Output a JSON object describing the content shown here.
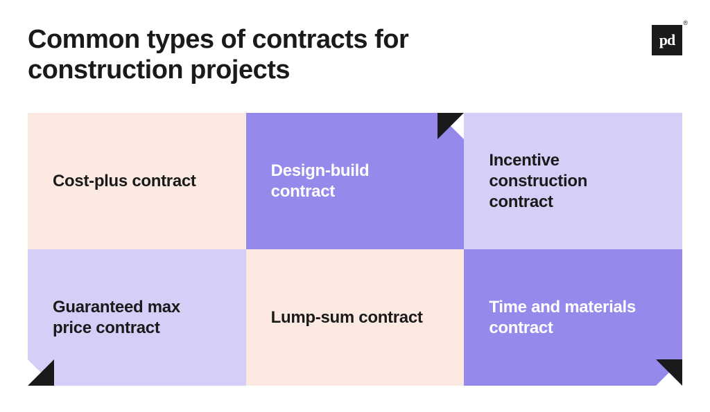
{
  "title": "Common types of contracts for construction projects",
  "logo": {
    "text": "pd",
    "registered": "®"
  },
  "colors": {
    "dark": "#1a1a1a",
    "white": "#ffffff",
    "peach": "#fbe9e2",
    "purple_mid": "#9589ec",
    "purple_light": "#d5cef7"
  },
  "cells": [
    {
      "label": "Cost-plus contract",
      "bg": "#fbe9e2",
      "text_color": "#1a1a1a",
      "fold": null
    },
    {
      "label": "Design-build contract",
      "bg": "#9589ec",
      "text_color": "#ffffff",
      "fold": {
        "pos": "tr",
        "fg": "#1a1a1a",
        "bg": "#ffffff"
      }
    },
    {
      "label": "Incentive construction contract",
      "bg": "#d5cef7",
      "text_color": "#1a1a1a",
      "fold": null
    },
    {
      "label": "Guaranteed max price contract",
      "bg": "#d5cef7",
      "text_color": "#1a1a1a",
      "fold": {
        "pos": "bl",
        "fg": "#1a1a1a",
        "bg": "#ffffff"
      }
    },
    {
      "label": "Lump-sum contract",
      "bg": "#fbe9e2",
      "text_color": "#1a1a1a",
      "fold": null
    },
    {
      "label": "Time and materials contract",
      "bg": "#9589ec",
      "text_color": "#ffffff",
      "fold": {
        "pos": "br",
        "fg": "#1a1a1a",
        "bg": "#ffffff"
      }
    }
  ]
}
